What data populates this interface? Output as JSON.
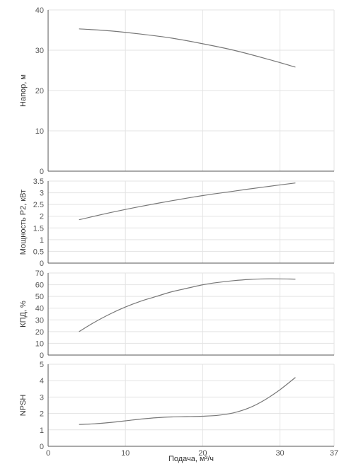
{
  "chart_data": {
    "type": "line",
    "shared_x": {
      "label": "Подача, м³/ч",
      "range": [
        0,
        37
      ],
      "ticks": [
        "0",
        "10",
        "20",
        "30",
        "37"
      ]
    },
    "panels": [
      {
        "id": "head",
        "ylabel": "Напор, м",
        "ylim": [
          0,
          40
        ],
        "ticks": [
          "0",
          "10",
          "20",
          "30",
          "40"
        ],
        "x": [
          4,
          8,
          12,
          16,
          20,
          24,
          28,
          32
        ],
        "y": [
          35.3,
          34.8,
          34.0,
          33.0,
          31.6,
          30.0,
          28.0,
          25.8
        ]
      },
      {
        "id": "power",
        "ylabel": "Мощность P2, кВт",
        "ylim": [
          0,
          3.5
        ],
        "ticks": [
          "0",
          "0.5",
          "1",
          "1.5",
          "2",
          "2.5",
          "3",
          "3.5"
        ],
        "x": [
          4,
          8,
          12,
          16,
          20,
          24,
          28,
          32
        ],
        "y": [
          1.85,
          2.15,
          2.42,
          2.66,
          2.88,
          3.07,
          3.25,
          3.42
        ]
      },
      {
        "id": "efficiency",
        "ylabel": "КПД, %",
        "ylim": [
          0,
          70
        ],
        "ticks": [
          "0",
          "10",
          "20",
          "30",
          "40",
          "50",
          "60",
          "70"
        ],
        "x": [
          4,
          6,
          8,
          10,
          12,
          14,
          16,
          18,
          20,
          22,
          24,
          26,
          28,
          30,
          32
        ],
        "y": [
          20,
          28,
          35,
          41,
          46,
          50,
          54,
          57,
          60,
          62,
          63.5,
          64.5,
          65,
          65,
          64.8
        ]
      },
      {
        "id": "npsh",
        "ylabel": "NPSH",
        "ylim": [
          0,
          5
        ],
        "ticks": [
          "0",
          "1",
          "2",
          "3",
          "4",
          "5"
        ],
        "x": [
          4,
          6,
          8,
          10,
          12,
          14,
          16,
          18,
          20,
          22,
          24,
          26,
          28,
          30,
          32
        ],
        "y": [
          1.33,
          1.37,
          1.45,
          1.55,
          1.66,
          1.74,
          1.79,
          1.81,
          1.83,
          1.89,
          2.04,
          2.34,
          2.82,
          3.45,
          4.2
        ]
      }
    ]
  },
  "colors": {
    "line": "#777777",
    "grid": "#e3e3e3",
    "axis": "#555555",
    "text": "#444444"
  }
}
